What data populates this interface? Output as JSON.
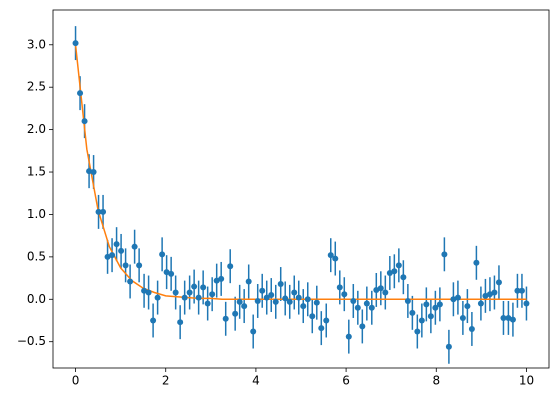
{
  "chart_data": {
    "type": "errorbar",
    "xlim": [
      -0.5,
      10.5
    ],
    "ylim": [
      -0.81,
      3.41
    ],
    "xticks": [
      0,
      2,
      4,
      6,
      8,
      10
    ],
    "yticks": [
      {
        "value": -0.5,
        "label": "−0.5"
      },
      {
        "value": 0,
        "label": "0.0"
      },
      {
        "value": 0.5,
        "label": "0.5"
      },
      {
        "value": 1,
        "label": "1.0"
      },
      {
        "value": 1.5,
        "label": "1.5"
      },
      {
        "value": 2,
        "label": "2.0"
      },
      {
        "value": 2.5,
        "label": "2.5"
      },
      {
        "value": 3,
        "label": "3.0"
      }
    ],
    "series": [
      {
        "color": "#1f77b4",
        "error": 0.2,
        "x": [
          0,
          0.1,
          0.2,
          0.3,
          0.4,
          0.51,
          0.61,
          0.71,
          0.81,
          0.91,
          1.01,
          1.11,
          1.21,
          1.31,
          1.41,
          1.52,
          1.62,
          1.72,
          1.82,
          1.92,
          2.02,
          2.12,
          2.22,
          2.32,
          2.42,
          2.53,
          2.63,
          2.73,
          2.83,
          2.93,
          3.03,
          3.13,
          3.23,
          3.33,
          3.43,
          3.54,
          3.64,
          3.74,
          3.84,
          3.94,
          4.04,
          4.14,
          4.24,
          4.34,
          4.44,
          4.55,
          4.65,
          4.75,
          4.85,
          4.95,
          5.05,
          5.15,
          5.25,
          5.35,
          5.45,
          5.56,
          5.66,
          5.76,
          5.86,
          5.96,
          6.06,
          6.16,
          6.26,
          6.36,
          6.46,
          6.57,
          6.67,
          6.77,
          6.87,
          6.97,
          7.07,
          7.17,
          7.27,
          7.37,
          7.47,
          7.58,
          7.68,
          7.78,
          7.88,
          7.98,
          8.08,
          8.18,
          8.28,
          8.38,
          8.48,
          8.59,
          8.69,
          8.79,
          8.89,
          8.99,
          9.09,
          9.19,
          9.29,
          9.39,
          9.49,
          9.6,
          9.7,
          9.8,
          9.9,
          10.0
        ],
        "values": [
          3.02,
          2.43,
          2.1,
          1.51,
          1.5,
          1.03,
          1.03,
          0.5,
          0.52,
          0.65,
          0.57,
          0.4,
          0.21,
          0.62,
          0.4,
          0.1,
          0.08,
          -0.25,
          0.02,
          0.53,
          0.32,
          0.3,
          0.08,
          -0.27,
          0.02,
          0.08,
          0.15,
          0.02,
          0.14,
          -0.05,
          0.06,
          0.22,
          0.24,
          -0.23,
          0.39,
          -0.17,
          -0.03,
          -0.08,
          0.21,
          -0.38,
          -0.02,
          0.1,
          0.02,
          0.05,
          -0.03,
          0.18,
          0.01,
          -0.03,
          0.08,
          0.02,
          -0.08,
          0.0,
          -0.2,
          -0.04,
          -0.34,
          -0.25,
          0.52,
          0.48,
          0.14,
          0.06,
          -0.44,
          -0.02,
          -0.1,
          -0.32,
          -0.05,
          -0.1,
          0.11,
          0.13,
          0.08,
          0.31,
          0.33,
          0.4,
          0.26,
          -0.02,
          -0.16,
          -0.38,
          -0.25,
          -0.06,
          -0.2,
          -0.1,
          -0.06,
          0.53,
          -0.56,
          0.0,
          0.02,
          -0.22,
          -0.08,
          -0.35,
          0.43,
          -0.05,
          0.04,
          0.06,
          0.08,
          0.2,
          -0.22,
          -0.22,
          -0.24,
          0.1,
          0.1,
          -0.05
        ]
      },
      {
        "color": "#ff7f0e",
        "x": [
          0,
          0.25,
          0.5,
          0.75,
          1,
          1.25,
          1.5,
          1.75,
          2,
          2.25,
          2.5,
          2.75,
          3,
          3.25,
          3.5,
          3.75,
          4,
          4.25,
          4.5,
          4.75,
          5,
          5.25,
          5.5,
          5.75,
          6,
          6.25,
          6.5,
          6.75,
          7,
          7.25,
          7.5,
          7.75,
          8,
          8.25,
          8.5,
          8.75,
          9,
          9.25,
          9.5,
          9.75,
          10
        ],
        "values": [
          3.0,
          1.77,
          1.05,
          0.62,
          0.37,
          0.22,
          0.13,
          0.08,
          0.04,
          0.03,
          0.02,
          0.01,
          0.01,
          0,
          0,
          0,
          0,
          0,
          0,
          0,
          0,
          0,
          0,
          0,
          0,
          0,
          0,
          0,
          0,
          0,
          0,
          0,
          0,
          0,
          0,
          0,
          0,
          0,
          0,
          0,
          0
        ]
      }
    ]
  }
}
